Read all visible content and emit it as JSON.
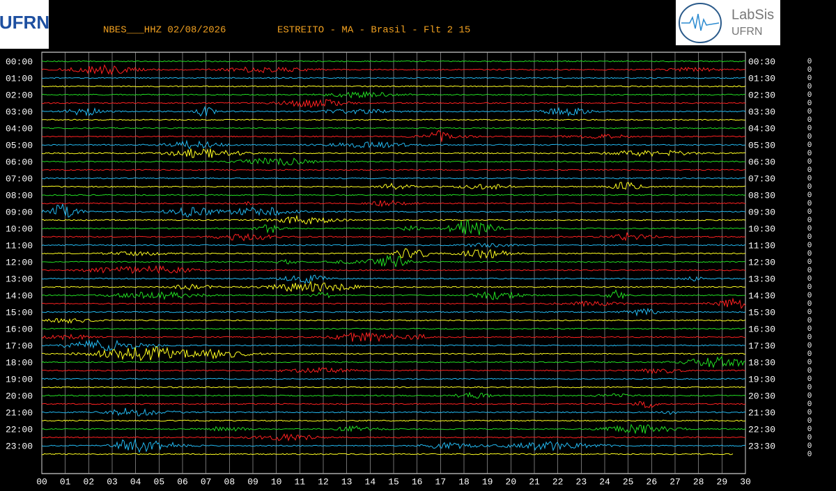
{
  "header": {
    "station": "NBES___HHZ 02/08/2026",
    "location": "ESTREITO - MA - Brasil - Flt 2 15",
    "logo_left": "UFRN",
    "logo_right": {
      "name": "LabSis",
      "org": "UFRN"
    }
  },
  "left_labels": [
    "00:00",
    "01:00",
    "02:00",
    "03:00",
    "04:00",
    "05:00",
    "06:00",
    "07:00",
    "08:00",
    "09:00",
    "10:00",
    "11:00",
    "12:00",
    "13:00",
    "14:00",
    "15:00",
    "16:00",
    "17:00",
    "18:00",
    "19:00",
    "20:00",
    "21:00",
    "22:00",
    "23:00"
  ],
  "right_labels": [
    "00:30",
    "01:30",
    "02:30",
    "03:30",
    "04:30",
    "05:30",
    "06:30",
    "07:30",
    "08:30",
    "09:30",
    "10:30",
    "11:30",
    "12:30",
    "13:30",
    "14:30",
    "15:30",
    "16:30",
    "17:30",
    "18:30",
    "19:30",
    "20:30",
    "21:30",
    "22:30",
    "23:30"
  ],
  "x_labels": [
    "00",
    "01",
    "02",
    "03",
    "04",
    "05",
    "06",
    "07",
    "08",
    "09",
    "10",
    "11",
    "12",
    "13",
    "14",
    "15",
    "16",
    "17",
    "18",
    "19",
    "20",
    "21",
    "22",
    "23",
    "24",
    "25",
    "26",
    "27",
    "28",
    "29",
    "30"
  ],
  "right_values": [
    0,
    0,
    0,
    0,
    0,
    0,
    0,
    0,
    0,
    0,
    0,
    0,
    0,
    0,
    0,
    0,
    0,
    0,
    0,
    0,
    0,
    0,
    0,
    0,
    0,
    0,
    0,
    0,
    0,
    0,
    0,
    0,
    0,
    0,
    0,
    0,
    0,
    0,
    0,
    0,
    0,
    0,
    0,
    0,
    0,
    0,
    0,
    0
  ]
}
